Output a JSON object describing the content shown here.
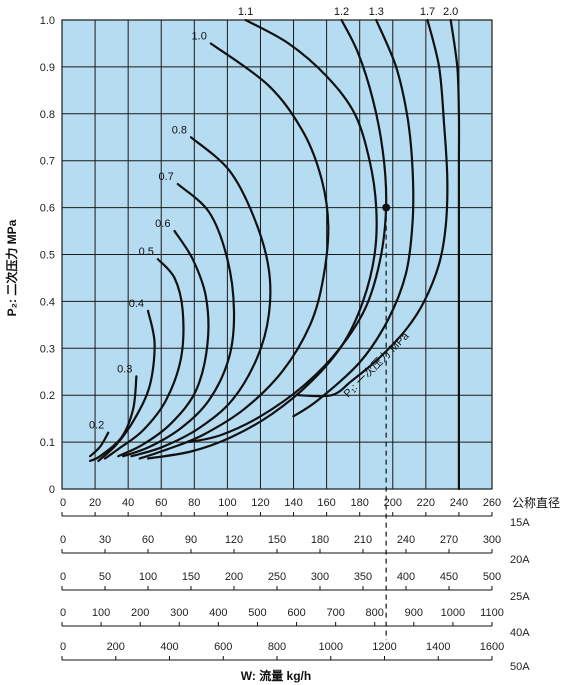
{
  "chart_data": {
    "type": "line",
    "ylabel": "P₂: 二次压力 MPa",
    "xlabel": "W: 流量 kg/h",
    "ylim": [
      0,
      1.0
    ],
    "yticks": [
      "0",
      "0.1",
      "0.2",
      "0.3",
      "0.4",
      "0.5",
      "0.6",
      "0.7",
      "0.8",
      "0.9",
      "1.0"
    ],
    "grid": true,
    "colors": {
      "plot_bg": "#b6dcf2",
      "grid": "#1a1a1a",
      "curve": "#111111"
    },
    "primary_axis_title": "公称直径",
    "primary_pressure_label": "P₁: 一次压力 MPa",
    "x_scales": [
      {
        "dn": "15A",
        "max": 260,
        "ticks": [
          "0",
          "20",
          "40",
          "60",
          "80",
          "100",
          "120",
          "140",
          "160",
          "180",
          "200",
          "220",
          "240",
          "260"
        ]
      },
      {
        "dn": "20A",
        "max": 300,
        "ticks": [
          "0",
          "30",
          "60",
          "90",
          "120",
          "150",
          "180",
          "210",
          "240",
          "270",
          "300"
        ]
      },
      {
        "dn": "25A",
        "max": 500,
        "ticks": [
          "0",
          "50",
          "100",
          "150",
          "200",
          "250",
          "300",
          "350",
          "400",
          "450",
          "500"
        ]
      },
      {
        "dn": "40A",
        "max": 1100,
        "ticks": [
          "0",
          "100",
          "200",
          "300",
          "400",
          "500",
          "600",
          "700",
          "800",
          "900",
          "1000",
          "1100"
        ]
      },
      {
        "dn": "50A",
        "max": 1700,
        "ticks": [
          "0",
          "200",
          "400",
          "600",
          "800",
          "1000",
          "1200",
          "1400",
          "1600"
        ]
      }
    ],
    "series": [
      {
        "name": "0.2",
        "points": [
          [
            28,
            0.12
          ],
          [
            23,
            0.09
          ],
          [
            17,
            0.07
          ]
        ]
      },
      {
        "name": "0.3",
        "points": [
          [
            45,
            0.24
          ],
          [
            43,
            0.17
          ],
          [
            36,
            0.11
          ],
          [
            23,
            0.07
          ],
          [
            17,
            0.06
          ]
        ]
      },
      {
        "name": "0.4",
        "points": [
          [
            52,
            0.38
          ],
          [
            56,
            0.31
          ],
          [
            53,
            0.22
          ],
          [
            44,
            0.15
          ],
          [
            33,
            0.095
          ],
          [
            22,
            0.06
          ]
        ]
      },
      {
        "name": "0.5",
        "points": [
          [
            58,
            0.49
          ],
          [
            68,
            0.45
          ],
          [
            73,
            0.38
          ],
          [
            72,
            0.28
          ],
          [
            63,
            0.19
          ],
          [
            49,
            0.125
          ],
          [
            34,
            0.085
          ],
          [
            26,
            0.065
          ]
        ]
      },
      {
        "name": "0.6",
        "points": [
          [
            68,
            0.55
          ],
          [
            79,
            0.49
          ],
          [
            87,
            0.41
          ],
          [
            88,
            0.31
          ],
          [
            81,
            0.21
          ],
          [
            66,
            0.14
          ],
          [
            49,
            0.095
          ],
          [
            34,
            0.07
          ]
        ]
      },
      {
        "name": "0.7",
        "points": [
          [
            70,
            0.65
          ],
          [
            89,
            0.59
          ],
          [
            100,
            0.49
          ],
          [
            104,
            0.38
          ],
          [
            101,
            0.28
          ],
          [
            89,
            0.19
          ],
          [
            72,
            0.13
          ],
          [
            53,
            0.09
          ],
          [
            37,
            0.07
          ]
        ]
      },
      {
        "name": "0.8",
        "points": [
          [
            78,
            0.75
          ],
          [
            101,
            0.68
          ],
          [
            116,
            0.58
          ],
          [
            125,
            0.47
          ],
          [
            125,
            0.37
          ],
          [
            118,
            0.28
          ],
          [
            103,
            0.19
          ],
          [
            83,
            0.13
          ],
          [
            61,
            0.09
          ],
          [
            42,
            0.07
          ]
        ]
      },
      {
        "name": "1.0",
        "points": [
          [
            90,
            0.95
          ],
          [
            125,
            0.86
          ],
          [
            146,
            0.76
          ],
          [
            157,
            0.66
          ],
          [
            161,
            0.56
          ],
          [
            158,
            0.45
          ],
          [
            150,
            0.35
          ],
          [
            133,
            0.25
          ],
          [
            110,
            0.17
          ],
          [
            85,
            0.115
          ],
          [
            64,
            0.085
          ],
          [
            47,
            0.065
          ]
        ]
      },
      {
        "name": "1.1",
        "points": [
          [
            111,
            1.0
          ],
          [
            137,
            0.95
          ],
          [
            160,
            0.88
          ],
          [
            177,
            0.8
          ],
          [
            186,
            0.7
          ],
          [
            190,
            0.6
          ],
          [
            189,
            0.5
          ],
          [
            182,
            0.4
          ],
          [
            170,
            0.31
          ],
          [
            151,
            0.23
          ],
          [
            127,
            0.16
          ],
          [
            102,
            0.11
          ],
          [
            78,
            0.08
          ],
          [
            52,
            0.065
          ]
        ]
      },
      {
        "name": "1.2",
        "points": [
          [
            169,
            1.0
          ],
          [
            179,
            0.93
          ],
          [
            188,
            0.83
          ],
          [
            194,
            0.72
          ],
          [
            196,
            0.61
          ],
          [
            193,
            0.5
          ],
          [
            184,
            0.39
          ],
          [
            168,
            0.3
          ],
          [
            146,
            0.22
          ],
          [
            120,
            0.155
          ],
          [
            96,
            0.115
          ],
          [
            77,
            0.1
          ]
        ]
      },
      {
        "name": "1.3",
        "points": [
          [
            190,
            1.0
          ],
          [
            202,
            0.9
          ],
          [
            209,
            0.79
          ],
          [
            212,
            0.68
          ],
          [
            212,
            0.57
          ],
          [
            208,
            0.46
          ],
          [
            197,
            0.36
          ],
          [
            180,
            0.27
          ],
          [
            155,
            0.19
          ],
          [
            140,
            0.155
          ]
        ]
      },
      {
        "name": "1.7",
        "points": [
          [
            221,
            1.0
          ],
          [
            228,
            0.9
          ],
          [
            231,
            0.78
          ],
          [
            233,
            0.66
          ],
          [
            232,
            0.56
          ],
          [
            228,
            0.48
          ],
          [
            219,
            0.4
          ],
          [
            208,
            0.34
          ],
          [
            192,
            0.28
          ],
          [
            175,
            0.23
          ],
          [
            163,
            0.2
          ],
          [
            143,
            0.2
          ]
        ]
      },
      {
        "name": "2.0",
        "points": [
          [
            235,
            1.0
          ],
          [
            239,
            0.9
          ],
          [
            240,
            0.8
          ],
          [
            240,
            0.7
          ],
          [
            240,
            0.6
          ],
          [
            240,
            0.5
          ],
          [
            240,
            0.4
          ],
          [
            240,
            0.3
          ],
          [
            240,
            0.2
          ],
          [
            240,
            0.1
          ],
          [
            240,
            0.0
          ]
        ]
      }
    ],
    "marker": {
      "x": 196,
      "y": 0.6
    }
  }
}
